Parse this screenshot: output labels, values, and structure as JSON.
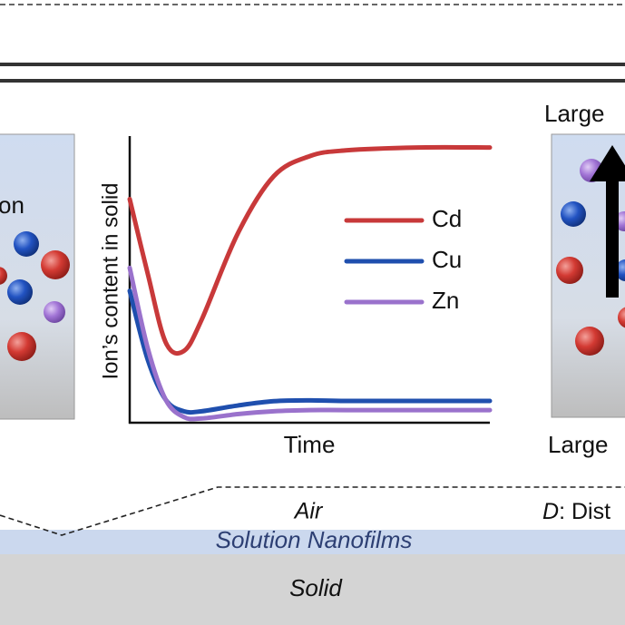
{
  "labels": {
    "left_panel": "on",
    "right_top": "Large",
    "right_bottom": "Large",
    "air": "Air",
    "dist_symbol": "D",
    "dist_text": ": Dist",
    "nanofilms": "Solution Nanofilms",
    "solid": "Solid"
  },
  "chart_data": {
    "type": "line",
    "xlabel": "Time",
    "ylabel": "Ion’s content in solid",
    "x": [
      0,
      0.5,
      1,
      1.5,
      2,
      3,
      4,
      5,
      6,
      8,
      10
    ],
    "xlim": [
      0,
      10
    ],
    "ylim": [
      0,
      100
    ],
    "series": [
      {
        "name": "Cd",
        "color": "#c8393a",
        "values": [
          78,
          52,
          28,
          25,
          36,
          66,
          86,
          93,
          95,
          96,
          96
        ]
      },
      {
        "name": "Cu",
        "color": "#1f4fae",
        "values": [
          46,
          22,
          8,
          4,
          4,
          6,
          7.5,
          7.8,
          7.6,
          7.6,
          7.6
        ]
      },
      {
        "name": "Zn",
        "color": "#9a72cc",
        "values": [
          54,
          26,
          8,
          2,
          1.5,
          3,
          4,
          4.4,
          4.4,
          4.4,
          4.4
        ]
      }
    ]
  }
}
